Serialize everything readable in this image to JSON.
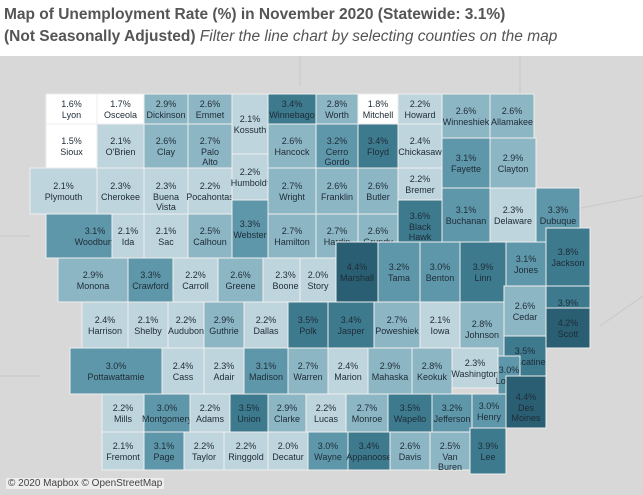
{
  "title": {
    "line1": "Map of Unemployment Rate (%) in November 2020 (Statewide: 3.1%)",
    "line2_bold": "(Not Seasonally Adjusted)",
    "line2_italic": "Filter the line chart by selecting counties on the map"
  },
  "credit": "© 2020 Mapbox © OpenStreetMap",
  "colors": {
    "background": "#d8d8d8",
    "scale": [
      "#ffffff",
      "#bfd5dd",
      "#8db6c5",
      "#5f97aa",
      "#3d7a8e",
      "#2a5f73"
    ]
  },
  "counties": [
    {
      "name": "Lyon",
      "rate": "1.6%"
    },
    {
      "name": "Osceola",
      "rate": "1.7%"
    },
    {
      "name": "Dickinson",
      "rate": "2.9%"
    },
    {
      "name": "Emmet",
      "rate": "2.6%"
    },
    {
      "name": "Kossuth",
      "rate": "2.1%"
    },
    {
      "name": "Winnebago",
      "rate": "3.4%"
    },
    {
      "name": "Worth",
      "rate": "2.8%"
    },
    {
      "name": "Mitchell",
      "rate": "1.8%"
    },
    {
      "name": "Howard",
      "rate": "2.2%"
    },
    {
      "name": "Winneshiek",
      "rate": "2.6%"
    },
    {
      "name": "Allamakee",
      "rate": "2.6%"
    },
    {
      "name": "Sioux",
      "rate": "1.5%"
    },
    {
      "name": "O'Brien",
      "rate": "2.1%"
    },
    {
      "name": "Clay",
      "rate": "2.6%"
    },
    {
      "name": "Palo Alto",
      "rate": "2.7%"
    },
    {
      "name": "Hancock",
      "rate": "2.6%"
    },
    {
      "name": "Cerro Gordo",
      "rate": "3.2%"
    },
    {
      "name": "Floyd",
      "rate": "3.4%"
    },
    {
      "name": "Chickasaw",
      "rate": "2.4%"
    },
    {
      "name": "Fayette",
      "rate": "3.1%"
    },
    {
      "name": "Clayton",
      "rate": "2.9%"
    },
    {
      "name": "Plymouth",
      "rate": "2.1%"
    },
    {
      "name": "Cherokee",
      "rate": "2.3%"
    },
    {
      "name": "Buena Vista",
      "rate": "2.3%"
    },
    {
      "name": "Pocahontas",
      "rate": "2.2%"
    },
    {
      "name": "Humboldt",
      "rate": "2.2%"
    },
    {
      "name": "Wright",
      "rate": "2.7%"
    },
    {
      "name": "Franklin",
      "rate": "2.6%"
    },
    {
      "name": "Butler",
      "rate": "2.6%"
    },
    {
      "name": "Bremer",
      "rate": "2.2%"
    },
    {
      "name": "Black Hawk",
      "rate": "3.6%"
    },
    {
      "name": "Buchanan",
      "rate": "3.1%"
    },
    {
      "name": "Delaware",
      "rate": "2.3%"
    },
    {
      "name": "Dubuque",
      "rate": "3.3%"
    },
    {
      "name": "Woodbury",
      "rate": "3.1%"
    },
    {
      "name": "Ida",
      "rate": "2.1%"
    },
    {
      "name": "Sac",
      "rate": "2.1%"
    },
    {
      "name": "Calhoun",
      "rate": "2.5%"
    },
    {
      "name": "Webster",
      "rate": "3.3%"
    },
    {
      "name": "Hamilton",
      "rate": "2.7%"
    },
    {
      "name": "Hardin",
      "rate": "2.7%"
    },
    {
      "name": "Grundy",
      "rate": "2.6%"
    },
    {
      "name": "Monona",
      "rate": "2.9%"
    },
    {
      "name": "Crawford",
      "rate": "3.3%"
    },
    {
      "name": "Carroll",
      "rate": "2.2%"
    },
    {
      "name": "Greene",
      "rate": "2.6%"
    },
    {
      "name": "Boone",
      "rate": "2.3%"
    },
    {
      "name": "Story",
      "rate": "2.0%"
    },
    {
      "name": "Marshall",
      "rate": "4.4%"
    },
    {
      "name": "Tama",
      "rate": "3.2%"
    },
    {
      "name": "Benton",
      "rate": "3.0%"
    },
    {
      "name": "Linn",
      "rate": "3.9%"
    },
    {
      "name": "Jones",
      "rate": "3.1%"
    },
    {
      "name": "Jackson",
      "rate": "3.8%"
    },
    {
      "name": "Harrison",
      "rate": "2.4%"
    },
    {
      "name": "Shelby",
      "rate": "2.1%"
    },
    {
      "name": "Audubon",
      "rate": "2.2%"
    },
    {
      "name": "Guthrie",
      "rate": "2.9%"
    },
    {
      "name": "Dallas",
      "rate": "2.2%"
    },
    {
      "name": "Polk",
      "rate": "3.5%"
    },
    {
      "name": "Jasper",
      "rate": "3.4%"
    },
    {
      "name": "Poweshiek",
      "rate": "2.7%"
    },
    {
      "name": "Iowa",
      "rate": "2.1%"
    },
    {
      "name": "Johnson",
      "rate": "2.8%"
    },
    {
      "name": "Cedar",
      "rate": "2.6%"
    },
    {
      "name": "Clinton",
      "rate": "3.9%"
    },
    {
      "name": "Scott",
      "rate": "4.2%"
    },
    {
      "name": "Muscatine",
      "rate": "3.5%"
    },
    {
      "name": "Pottawattamie",
      "rate": "3.0%"
    },
    {
      "name": "Cass",
      "rate": "2.4%"
    },
    {
      "name": "Adair",
      "rate": "2.3%"
    },
    {
      "name": "Madison",
      "rate": "3.1%"
    },
    {
      "name": "Warren",
      "rate": "2.7%"
    },
    {
      "name": "Marion",
      "rate": "2.4%"
    },
    {
      "name": "Mahaska",
      "rate": "2.9%"
    },
    {
      "name": "Keokuk",
      "rate": "2.8%"
    },
    {
      "name": "Washington",
      "rate": "2.3%"
    },
    {
      "name": "Louisa",
      "rate": "3.0%"
    },
    {
      "name": "Mills",
      "rate": "2.2%"
    },
    {
      "name": "Montgomery",
      "rate": "3.0%"
    },
    {
      "name": "Adams",
      "rate": "2.2%"
    },
    {
      "name": "Union",
      "rate": "3.5%"
    },
    {
      "name": "Clarke",
      "rate": "2.9%"
    },
    {
      "name": "Lucas",
      "rate": "2.2%"
    },
    {
      "name": "Monroe",
      "rate": "2.7%"
    },
    {
      "name": "Wapello",
      "rate": "3.5%"
    },
    {
      "name": "Jefferson",
      "rate": "3.2%"
    },
    {
      "name": "Henry",
      "rate": "3.0%"
    },
    {
      "name": "Des Moines",
      "rate": "4.4%"
    },
    {
      "name": "Fremont",
      "rate": "2.1%"
    },
    {
      "name": "Page",
      "rate": "3.1%"
    },
    {
      "name": "Taylor",
      "rate": "2.2%"
    },
    {
      "name": "Ringgold",
      "rate": "2.2%"
    },
    {
      "name": "Decatur",
      "rate": "2.0%"
    },
    {
      "name": "Wayne",
      "rate": "3.0%"
    },
    {
      "name": "Appanoose",
      "rate": "3.4%"
    },
    {
      "name": "Davis",
      "rate": "2.6%"
    },
    {
      "name": "Van Buren",
      "rate": "2.5%"
    },
    {
      "name": "Lee",
      "rate": "3.9%"
    }
  ]
}
